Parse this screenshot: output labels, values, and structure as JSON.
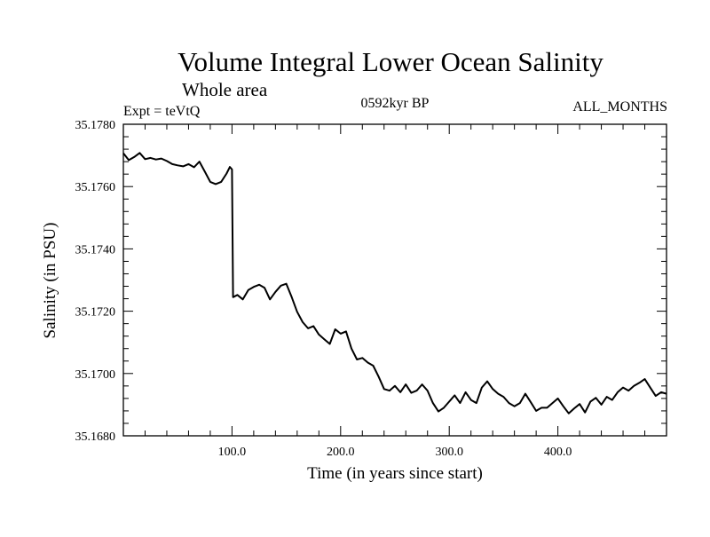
{
  "chart_data": {
    "type": "line",
    "title": "Volume Integral Lower Ocean Salinity",
    "subtitle": "Whole area",
    "experiment": "Expt = teVtQ",
    "period": "0592kyr BP",
    "months": "ALL_MONTHS",
    "xlabel": "Time (in years since start)",
    "ylabel": "Salinity (in PSU)",
    "xlim": [
      0,
      500
    ],
    "ylim": [
      35.168,
      35.178
    ],
    "x_ticks": [
      100,
      200,
      300,
      400
    ],
    "x_tick_labels": [
      "100.0",
      "200.0",
      "300.0",
      "400.0"
    ],
    "y_ticks": [
      35.168,
      35.17,
      35.172,
      35.174,
      35.176,
      35.178
    ],
    "y_tick_labels": [
      "35.1680",
      "35.1700",
      "35.1720",
      "35.1740",
      "35.1760",
      "35.1780"
    ],
    "grid": false,
    "series": [
      {
        "color": "#000000",
        "x": [
          0,
          5,
          10,
          15,
          20,
          25,
          30,
          35,
          40,
          45,
          50,
          55,
          60,
          65,
          70,
          75,
          80,
          85,
          90,
          95,
          98,
          100,
          101,
          105,
          110,
          115,
          120,
          125,
          130,
          135,
          140,
          145,
          150,
          155,
          160,
          165,
          170,
          175,
          180,
          185,
          190,
          195,
          200,
          205,
          210,
          215,
          220,
          225,
          230,
          235,
          240,
          245,
          250,
          255,
          260,
          265,
          270,
          275,
          280,
          285,
          290,
          295,
          300,
          305,
          310,
          315,
          320,
          325,
          330,
          335,
          340,
          345,
          350,
          355,
          360,
          365,
          370,
          375,
          380,
          385,
          390,
          395,
          400,
          405,
          410,
          415,
          420,
          425,
          430,
          435,
          440,
          445,
          450,
          455,
          460,
          465,
          470,
          475,
          480,
          485,
          490,
          495,
          500
        ],
        "y": [
          35.17707,
          35.17685,
          35.17695,
          35.17708,
          35.17688,
          35.17692,
          35.17687,
          35.1769,
          35.17682,
          35.17672,
          35.17668,
          35.17665,
          35.17672,
          35.17662,
          35.1768,
          35.17648,
          35.17615,
          35.17608,
          35.17615,
          35.17642,
          35.17663,
          35.17655,
          35.17245,
          35.17252,
          35.17238,
          35.17268,
          35.17278,
          35.17285,
          35.17275,
          35.17238,
          35.17262,
          35.17282,
          35.17288,
          35.17245,
          35.17198,
          35.17165,
          35.17145,
          35.17152,
          35.17125,
          35.1711,
          35.17095,
          35.17142,
          35.17128,
          35.17135,
          35.1708,
          35.17045,
          35.1705,
          35.17035,
          35.17025,
          35.1699,
          35.1695,
          35.16945,
          35.1696,
          35.1694,
          35.16965,
          35.16938,
          35.16945,
          35.16965,
          35.16945,
          35.16905,
          35.16878,
          35.1689,
          35.1691,
          35.1693,
          35.16905,
          35.1694,
          35.16915,
          35.16905,
          35.16955,
          35.16975,
          35.1695,
          35.16935,
          35.16925,
          35.16905,
          35.16895,
          35.16905,
          35.16935,
          35.16908,
          35.1688,
          35.1689,
          35.1689,
          35.16905,
          35.1692,
          35.16895,
          35.16872,
          35.16888,
          35.16902,
          35.16875,
          35.1691,
          35.16922,
          35.169,
          35.16925,
          35.16915,
          35.1694,
          35.16955,
          35.16945,
          35.1696,
          35.1697,
          35.16982,
          35.16955,
          35.16928,
          35.1694,
          35.16935
        ]
      }
    ]
  }
}
